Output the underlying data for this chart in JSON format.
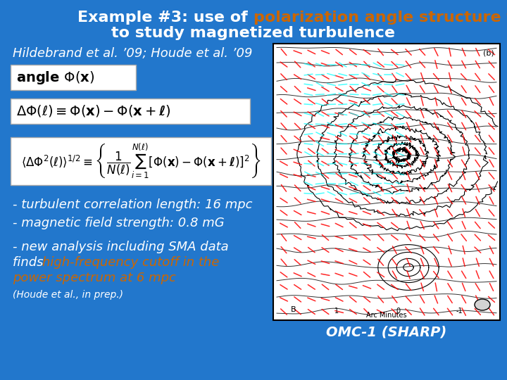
{
  "bg_color": "#2277cc",
  "title_white1": "Example #3: use of ",
  "title_orange": "polarization angle structure functions",
  "title_white2": "to study magnetized turbulence",
  "subtitle": "Hildebrand et al. ’09; Houde et al. ’09",
  "bullet1": "- turbulent correlation length: 16 mpc",
  "bullet2": "- magnetic field strength: 0.8 mG",
  "bullet3a_white": "- new analysis including SMA data",
  "bullet3b_white": "finds ",
  "bullet3b_orange": "high-frequency cutoff in the",
  "bullet3c_orange": "power spectrum at 6 mpc",
  "footnote": "(Houde et al., in prep.)",
  "caption": "OMC-1 (SHARP)",
  "white": "#ffffff",
  "orange": "#cc6600",
  "dark_blue": "#1a5fa8"
}
